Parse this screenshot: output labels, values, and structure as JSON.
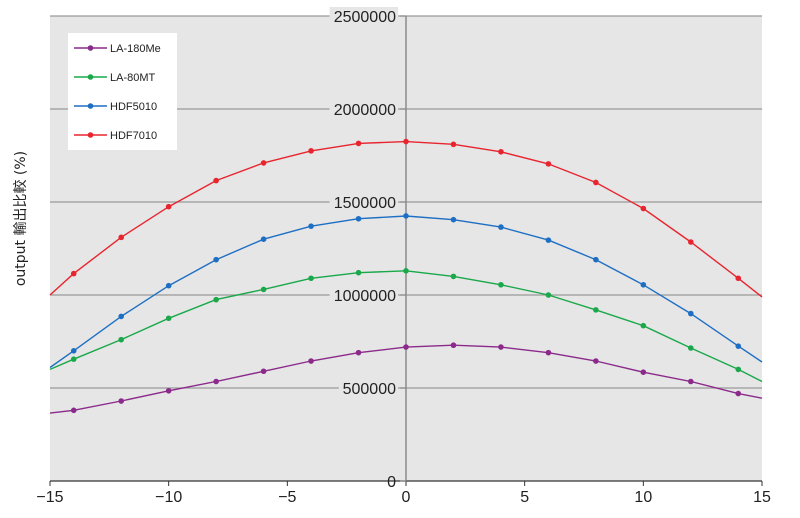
{
  "chart_data": {
    "type": "line",
    "title": "",
    "xlabel": "",
    "ylabel": "output 輸出比較 (%)",
    "xlim": [
      -15,
      15
    ],
    "ylim": [
      0,
      2500000
    ],
    "xticks": [
      -15,
      -10,
      -5,
      0,
      5,
      10,
      15
    ],
    "xtick_labels": [
      "−15",
      "−10",
      "−5",
      "0",
      "5",
      "10",
      "15"
    ],
    "yticks": [
      0,
      500000,
      1000000,
      1500000,
      2000000,
      2500000
    ],
    "ytick_labels": [
      "0",
      "500000",
      "1000000",
      "1500000",
      "2000000",
      "2500000"
    ],
    "grid": true,
    "legend_position": "top-left",
    "x": [
      -14,
      -12,
      -10,
      -8,
      -6,
      -4,
      -2,
      0,
      2,
      4,
      6,
      8,
      10,
      12,
      14
    ],
    "series": [
      {
        "name": "LA-180Me",
        "color": "#8b2a8b",
        "values": [
          380000,
          430000,
          485000,
          535000,
          590000,
          645000,
          690000,
          720000,
          730000,
          720000,
          690000,
          645000,
          585000,
          535000,
          470000
        ],
        "line_ends": [
          [
            -15,
            365000
          ],
          [
            15,
            445000
          ]
        ]
      },
      {
        "name": "LA-80MT",
        "color": "#1aa84a",
        "values": [
          655000,
          760000,
          875000,
          975000,
          1030000,
          1090000,
          1120000,
          1130000,
          1100000,
          1055000,
          1000000,
          920000,
          835000,
          715000,
          600000
        ],
        "line_ends": [
          [
            -15,
            600000
          ],
          [
            15,
            535000
          ]
        ]
      },
      {
        "name": "HDF5010",
        "color": "#1e6fc4",
        "values": [
          700000,
          885000,
          1050000,
          1190000,
          1300000,
          1370000,
          1410000,
          1425000,
          1405000,
          1365000,
          1295000,
          1190000,
          1055000,
          900000,
          725000
        ],
        "line_ends": [
          [
            -15,
            610000
          ],
          [
            15,
            640000
          ]
        ]
      },
      {
        "name": "HDF7010",
        "color": "#e8252f",
        "values": [
          1115000,
          1310000,
          1475000,
          1615000,
          1710000,
          1775000,
          1815000,
          1825000,
          1810000,
          1770000,
          1705000,
          1605000,
          1465000,
          1285000,
          1090000
        ],
        "line_ends": [
          [
            -15,
            1000000
          ],
          [
            15,
            990000
          ]
        ]
      }
    ]
  }
}
